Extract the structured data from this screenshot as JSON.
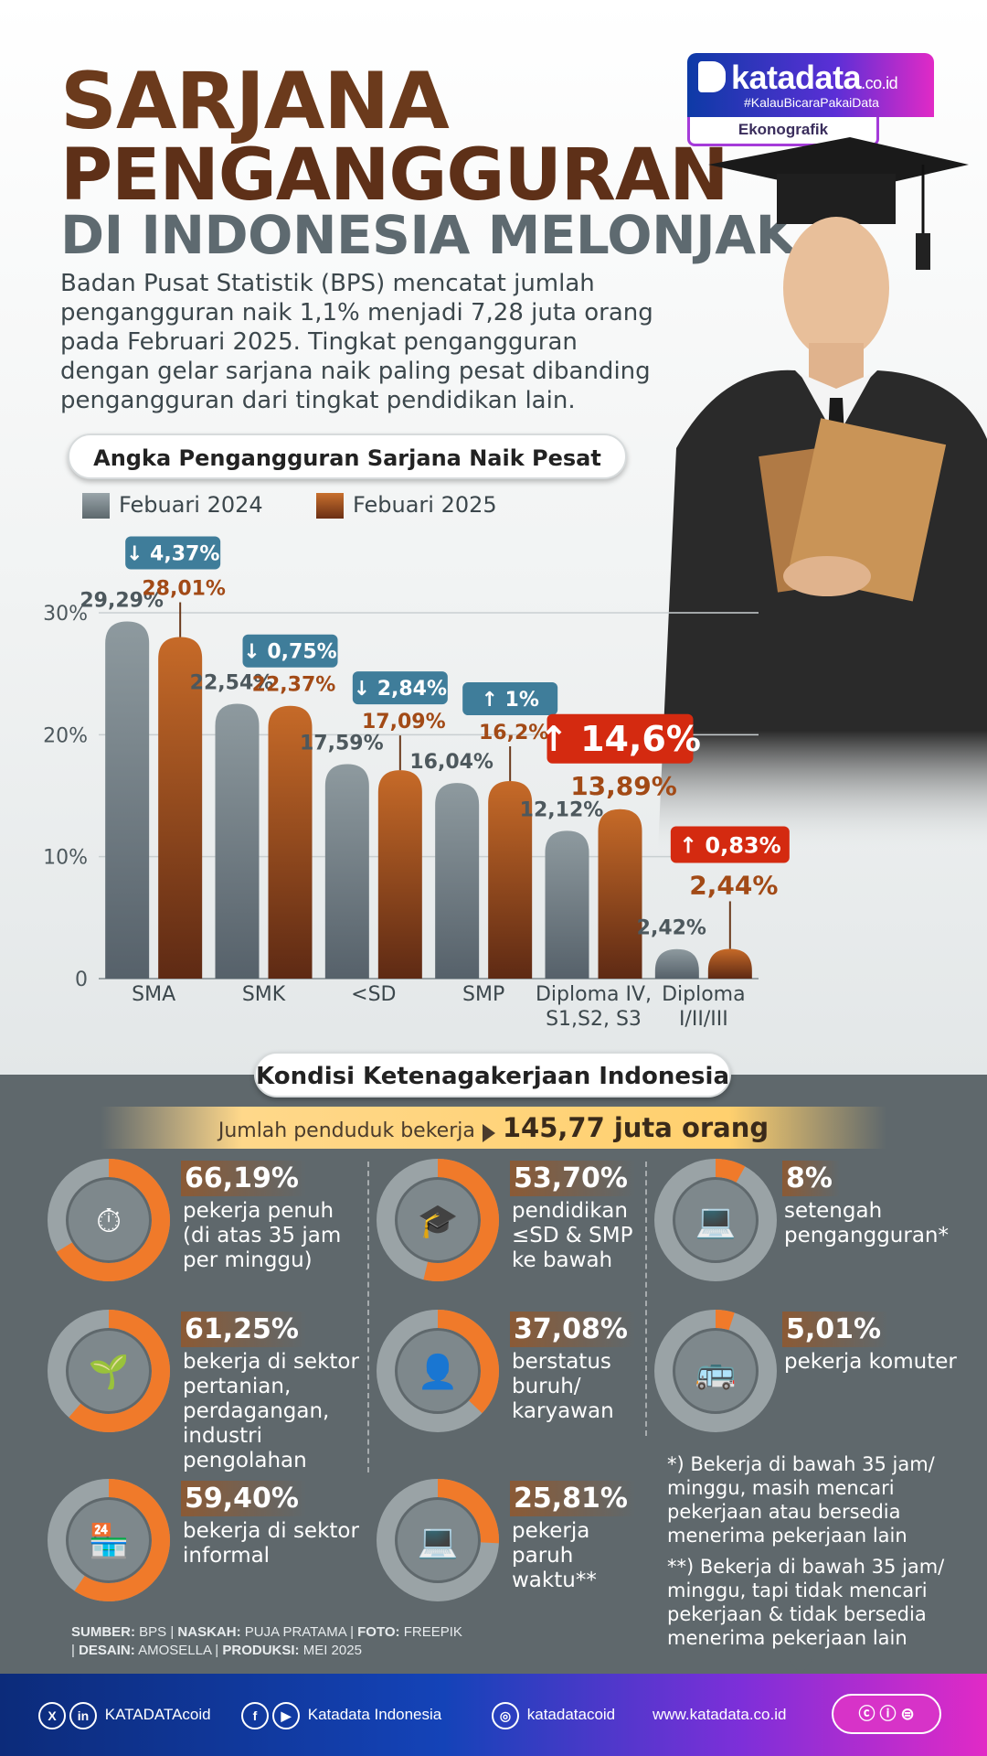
{
  "header": {
    "title_line1": "SARJANA",
    "title_line2": "PENGANGGURAN",
    "title_line3": "DI INDONESIA MELONJAK",
    "description": "Badan Pusat Statistik (BPS) mencatat jumlah pengangguran naik 1,1% menjadi 7,28 juta orang pada Februari 2025. Tingkat pengangguran dengan gelar sarjana naik paling pesat dibanding pengangguran dari tingkat pendidikan lain."
  },
  "logo": {
    "brand": "katadata",
    "domain": ".co.id",
    "tagline": "#KalauBicaraPakaiData",
    "section": "Ekonografik"
  },
  "chart_section": {
    "title": "Angka Pengangguran Sarjana Naik Pesat"
  },
  "chart_data": {
    "type": "bar",
    "categories": [
      "SMA",
      "SMK",
      "<SD",
      "SMP",
      "Diploma IV,\nS1,S2, S3",
      "Diploma\nI/II/III"
    ],
    "series": [
      {
        "name": "Febuari 2024",
        "values": [
          29.29,
          22.54,
          17.59,
          16.04,
          12.12,
          2.42
        ],
        "labels": [
          "29,29%",
          "22,54%",
          "17,59%",
          "16,04%",
          "12,12%",
          "2,42%"
        ],
        "color": "#7f8b90"
      },
      {
        "name": "Febuari 2025",
        "values": [
          28.01,
          22.37,
          17.09,
          16.2,
          13.89,
          2.44
        ],
        "labels": [
          "28,01%",
          "22,37%",
          "17,09%",
          "16,2%",
          "13,89%",
          "2,44%"
        ],
        "color": "#b25a22"
      }
    ],
    "changes": [
      {
        "direction": "down",
        "label": "4,37%"
      },
      {
        "direction": "down",
        "label": "0,75%"
      },
      {
        "direction": "down",
        "label": "2,84%"
      },
      {
        "direction": "up",
        "label": "1%"
      },
      {
        "direction": "up",
        "label": "14,6%",
        "highlight": true
      },
      {
        "direction": "up",
        "label": "0,83%",
        "highlight": true
      }
    ],
    "yticks": [
      "0",
      "10%",
      "20%",
      "30%"
    ],
    "ylim": [
      0,
      30
    ],
    "grid": true,
    "legend_position": "top-left"
  },
  "kondisi": {
    "title": "Kondisi Ketenagakerjaan Indonesia",
    "banner_label": "Jumlah penduduk bekerja",
    "banner_value": "145,77 juta orang",
    "stats": [
      {
        "pct": "66,19%",
        "value": 66.19,
        "label": "pekerja penuh (di atas 35 jam per minggu)",
        "icon": "worker-clock-icon"
      },
      {
        "pct": "53,70%",
        "value": 53.7,
        "label": "pendidikan ≤SD & SMP ke bawah",
        "icon": "graduation-cap-icon"
      },
      {
        "pct": "8%",
        "value": 8,
        "label": "setengah pengangguran*",
        "icon": "desk-worker-icon"
      },
      {
        "pct": "61,25%",
        "value": 61.25,
        "label": "bekerja di sektor pertanian, perdagangan, industri pengolahan",
        "icon": "farmer-icon"
      },
      {
        "pct": "37,08%",
        "value": 37.08,
        "label": "berstatus buruh/ karyawan",
        "icon": "employee-icon"
      },
      {
        "pct": "5,01%",
        "value": 5.01,
        "label": "pekerja komuter",
        "icon": "bus-icon"
      },
      {
        "pct": "59,40%",
        "value": 59.4,
        "label": "bekerja di sektor informal",
        "icon": "market-stall-icon"
      },
      {
        "pct": "25,81%",
        "value": 25.81,
        "label": "pekerja paruh waktu**",
        "icon": "laptop-worker-icon"
      }
    ],
    "note1": "*) Bekerja di bawah 35 jam/ minggu, masih mencari pekerjaan atau bersedia menerima pekerjaan lain",
    "note2": "**) Bekerja di bawah 35 jam/ minggu, tapi tidak mencari pekerjaan & tidak bersedia menerima pekerjaan lain"
  },
  "credits": {
    "sumber_label": "SUMBER:",
    "sumber": "BPS",
    "naskah_label": "NASKAH:",
    "naskah": "PUJA PRATAMA",
    "foto_label": "FOTO:",
    "foto": "FREEPIK",
    "desain_label": "DESAIN:",
    "desain": "AMOSELLA",
    "produksi_label": "PRODUKSI:",
    "produksi": "MEI 2025"
  },
  "footer": {
    "x_linkedin": "KATADATAcoid",
    "facebook_youtube": "Katadata Indonesia",
    "instagram": "katadatacoid",
    "website": "www.katadata.co.id"
  },
  "colors": {
    "grey_bar": "#7f8b90",
    "brown_bar": "#b25a22",
    "accent_red": "#d42a10",
    "badge_blue": "#3f7d9a",
    "donut_orange": "#f07a2a",
    "panel": "#5f686c"
  }
}
